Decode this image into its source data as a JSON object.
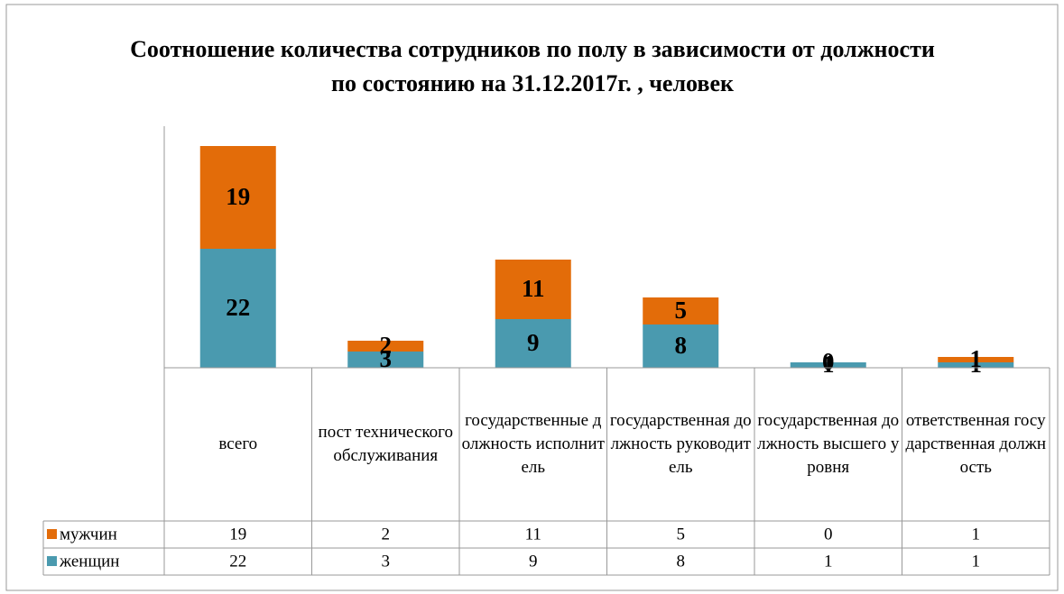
{
  "chart_data": {
    "type": "bar",
    "stacked": true,
    "title": "Соотношение количества сотрудников по полу в зависимости от должности по состоянию на 31.12.2017г. , человек",
    "categories": [
      "всего",
      "пост технического обслуживания",
      "государственные должность исполнитель",
      "государственная должность руководитель",
      "государственная должность высшего уровня",
      "ответственная государственная должность"
    ],
    "series": [
      {
        "name": "женщин",
        "color": "#4a9aaf",
        "values": [
          22,
          3,
          9,
          8,
          1,
          1
        ]
      },
      {
        "name": "мужчин",
        "color": "#e36c09",
        "values": [
          19,
          2,
          11,
          5,
          0,
          1
        ]
      }
    ],
    "ylim": [
      0,
      45
    ],
    "data_table": true
  }
}
